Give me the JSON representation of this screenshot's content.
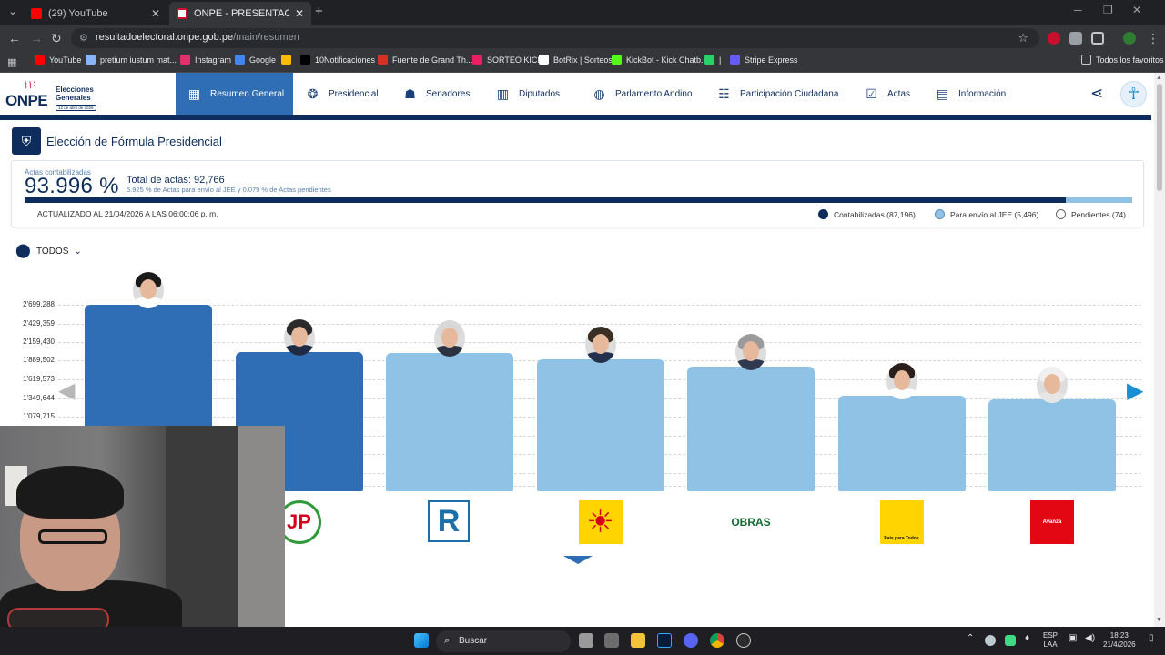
{
  "browser": {
    "tabs": [
      {
        "title": "(29) YouTube",
        "active": false
      },
      {
        "title": "ONPE - PRESENTACIÓN DE RES",
        "active": true
      }
    ],
    "url_host": "resultadoelectoral.onpe.gob.pe",
    "url_path": "/main/resumen",
    "bookmarks": [
      {
        "label": "YouTube",
        "color": "#ff0000"
      },
      {
        "label": "pretium iustum mat...",
        "color": "#8ab4f8"
      },
      {
        "label": "Instagram",
        "color": "#e1306c"
      },
      {
        "label": "Google",
        "color": "#4285f4"
      },
      {
        "label": "",
        "color": "#fbbc04"
      },
      {
        "label": "10Notificaciones",
        "color": "#000000"
      },
      {
        "label": "Fuente de Grand Th...",
        "color": "#d93025"
      },
      {
        "label": "SORTEO KICK",
        "color": "#e91e63"
      },
      {
        "label": "BotRix | Sorteos",
        "color": "#ffffff"
      },
      {
        "label": "KickBot - Kick Chatb...",
        "color": "#53fc18"
      },
      {
        "label": "|",
        "color": "#25d366"
      },
      {
        "label": "Stripe Express",
        "color": "#635bff"
      }
    ],
    "all_bookmarks": "Todos los favoritos"
  },
  "header": {
    "logo_text": "ONPE",
    "logo_title": "Elecciones Generales",
    "logo_date": "12 de abril de 2026",
    "nav": [
      {
        "label": "Resumen General",
        "icon": "dashboard-icon",
        "active": true
      },
      {
        "label": "Presidencial",
        "icon": "presidential-seal-icon",
        "active": false
      },
      {
        "label": "Senadores",
        "icon": "senators-icon",
        "active": false
      },
      {
        "label": "Diputados",
        "icon": "congress-building-icon",
        "active": false
      },
      {
        "label": "Parlamento Andino",
        "icon": "globe-icon",
        "active": false
      },
      {
        "label": "Participación Ciudadana",
        "icon": "people-icon",
        "active": false
      },
      {
        "label": "Actas",
        "icon": "checklist-icon",
        "active": false
      },
      {
        "label": "Información",
        "icon": "info-document-icon",
        "active": false
      }
    ]
  },
  "page": {
    "title": "Elección de Fórmula Presidencial"
  },
  "summary": {
    "actas_label": "Actas contabilizadas",
    "percent": "93.996 %",
    "total": "Total de actas: 92,766",
    "subtext": "5.925 % de Actas para envío al JEE y 0.079 % de Actas pendientes",
    "updated": "ACTUALIZADO AL 21/04/2026 A LAS 06:00:06 p. m.",
    "progress": {
      "contabilizadas": 0.93996,
      "jee": 0.05925,
      "pendientes": 0.00079
    },
    "legend": [
      {
        "label": "Contabilizadas (87,196)",
        "color": "#0e2c5c"
      },
      {
        "label": "Para envío al JEE (5,496)",
        "color": "#8fc2e5"
      },
      {
        "label": "Pendientes (74)",
        "color": "#ffffff"
      }
    ]
  },
  "filter": {
    "label": "TODOS"
  },
  "chart_data": {
    "type": "bar",
    "yticks": [
      "2'699,288",
      "2'429,359",
      "2'159,430",
      "1'889,502",
      "1'619,573",
      "1'349,644",
      "1'079,715"
    ],
    "tick_values": [
      2699288,
      2429359,
      2159430,
      1889502,
      1619573,
      1349644,
      1079715
    ],
    "ylim": [
      0,
      2699288
    ],
    "values": [
      2699288,
      2012000,
      1999000,
      1910000,
      1799000,
      1386000,
      1326000
    ],
    "bar_colors": [
      "#2f6db5",
      "#2f6db5",
      "#8fc2e5",
      "#8fc2e5",
      "#8fc2e5",
      "#8fc2e5",
      "#8fc2e5"
    ],
    "hair_colors": [
      "#1a1a1a",
      "#2b2b2b",
      "#d8d8d8",
      "#3a2f25",
      "#9a9a9a",
      "#2a1f1a",
      "#efefef"
    ],
    "suit_colors": [
      "#ffffff",
      "#1f2a44",
      "#2d3240",
      "#23314f",
      "#303a4f",
      "#ffffff",
      "#e6e6e6"
    ],
    "parties": [
      {
        "logo": "",
        "bg": "#ffffff",
        "fg": "#ffffff"
      },
      {
        "logo": "JP",
        "bg": "#ffffff",
        "fg": "#d6001c"
      },
      {
        "logo": "R",
        "bg": "#ffffff",
        "fg": "#1c6fa9"
      },
      {
        "logo": "☀",
        "bg": "#ffd400",
        "fg": "#d6001c"
      },
      {
        "logo": "OBRAS",
        "bg": "#ffffff",
        "fg": "#0f6b2f"
      },
      {
        "logo": "País para Todos",
        "bg": "#ffd400",
        "fg": "#111111"
      },
      {
        "logo": "Avanza",
        "bg": "#e30613",
        "fg": "#ffffff"
      }
    ]
  },
  "taskbar": {
    "search": "Buscar",
    "lang": "ESP",
    "lang2": "LAA",
    "time": "18:23",
    "date": "21/4/2026"
  }
}
